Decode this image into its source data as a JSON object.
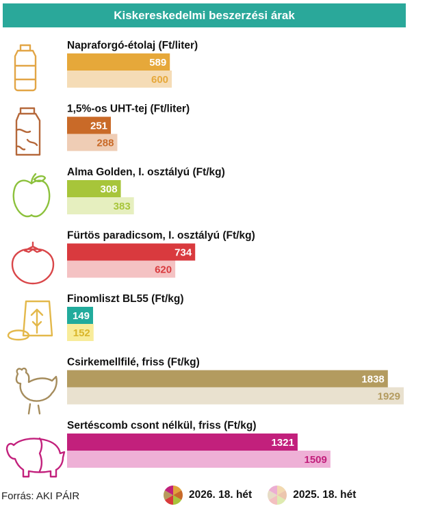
{
  "title": "Kiskereskedelmi beszerzési árak",
  "source": "Forrás: AKI PÁIR",
  "legend": [
    {
      "label": "2026. 18. hét",
      "colors": [
        "#e0a43a",
        "#c86a2a",
        "#a8c43a",
        "#d83b3b",
        "#b79a5c",
        "#c0207a"
      ]
    },
    {
      "label": "2025. 18. hét",
      "colors": [
        "#f2d9b0",
        "#ecc6ae",
        "#deeab0",
        "#f3c0c0",
        "#e7dcc6",
        "#ecaed2"
      ]
    }
  ],
  "icons": [
    "oil-bottle-icon",
    "milk-carton-icon",
    "apple-icon",
    "tomato-icon",
    "flour-icon",
    "chicken-icon",
    "pig-icon"
  ],
  "chart_data": {
    "type": "bar",
    "orientation": "horizontal",
    "title": "Kiskereskedelmi beszerzési árak",
    "series_names": [
      "2026. 18. hét",
      "2025. 18. hét"
    ],
    "categories": [
      {
        "label": "Napraforgó-étolaj (Ft/liter)",
        "values": [
          589,
          600
        ],
        "value_labels": [
          "589",
          "600"
        ],
        "colors": [
          "#e6a83a",
          "#f5dcb6"
        ],
        "text_colors": [
          "#ffffff",
          "#e6a83a"
        ]
      },
      {
        "label": "1,5%-os UHT-tej (Ft/liter)",
        "values": [
          251,
          288
        ],
        "value_labels": [
          "251",
          "288"
        ],
        "colors": [
          "#c96a28",
          "#efcdb5"
        ],
        "text_colors": [
          "#ffffff",
          "#c96a28"
        ]
      },
      {
        "label": "Alma Golden, I. osztályú (Ft/kg)",
        "values": [
          308,
          383
        ],
        "value_labels": [
          "308",
          "383"
        ],
        "colors": [
          "#a7c53a",
          "#e6efbf"
        ],
        "text_colors": [
          "#ffffff",
          "#a7c53a"
        ]
      },
      {
        "label": "Fürtös paradicsom, I. osztályú (Ft/kg)",
        "values": [
          734,
          620
        ],
        "value_labels": [
          "734",
          "620"
        ],
        "colors": [
          "#d93a3e",
          "#f4c2c3"
        ],
        "text_colors": [
          "#ffffff",
          "#d93a3e"
        ]
      },
      {
        "label": "Finomliszt BL55 (Ft/kg)",
        "values": [
          149,
          152
        ],
        "value_labels": [
          "149",
          "152"
        ],
        "colors": [
          "#22ab9c",
          "#f8ec9a"
        ],
        "text_colors": [
          "#ffffff",
          "#d9b52a"
        ]
      },
      {
        "label": "Csirkemellfilé, friss (Ft/kg)",
        "values": [
          1838,
          1929
        ],
        "value_labels": [
          "1838",
          "1929"
        ],
        "colors": [
          "#b39b5f",
          "#e9e1cf"
        ],
        "text_colors": [
          "#ffffff",
          "#b39b5f"
        ]
      },
      {
        "label": "Sertéscomb csont nélkül, friss (Ft/kg)",
        "values": [
          1321,
          1509
        ],
        "value_labels": [
          "1321",
          "1509"
        ],
        "colors": [
          "#c2207c",
          "#eeb0d6"
        ],
        "text_colors": [
          "#ffffff",
          "#c2207c"
        ]
      }
    ],
    "xlim": [
      0,
      1929
    ],
    "grid": false,
    "legend_position": "bottom"
  }
}
